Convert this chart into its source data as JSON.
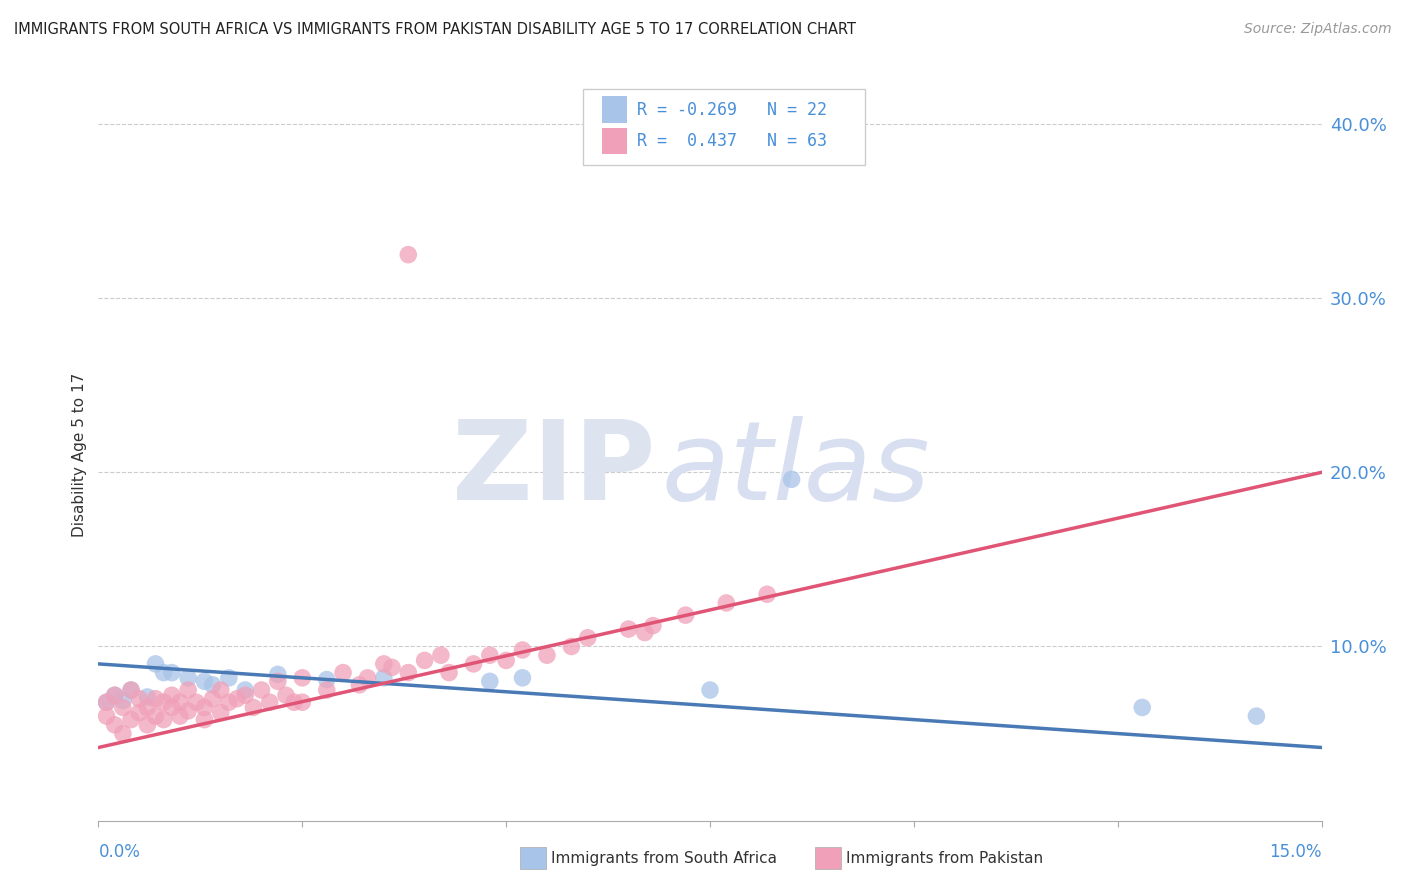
{
  "title": "IMMIGRANTS FROM SOUTH AFRICA VS IMMIGRANTS FROM PAKISTAN DISABILITY AGE 5 TO 17 CORRELATION CHART",
  "source": "Source: ZipAtlas.com",
  "ylabel": "Disability Age 5 to 17",
  "xlim": [
    0.0,
    0.15
  ],
  "ylim": [
    0.0,
    0.42
  ],
  "yticks": [
    0.1,
    0.2,
    0.3,
    0.4
  ],
  "legend_labels": [
    "Immigrants from South Africa",
    "Immigrants from Pakistan"
  ],
  "R_sa": -0.269,
  "N_sa": 22,
  "R_pk": 0.437,
  "N_pk": 63,
  "color_sa": "#a8c4e8",
  "color_pk": "#f0a0b8",
  "line_sa": "#4a7ab5",
  "line_pk": "#e05575",
  "color_text_blue": "#4a90d9",
  "sa_x": [
    0.001,
    0.002,
    0.003,
    0.004,
    0.006,
    0.007,
    0.008,
    0.009,
    0.011,
    0.013,
    0.014,
    0.016,
    0.018,
    0.022,
    0.028,
    0.035,
    0.048,
    0.052,
    0.075,
    0.085,
    0.128,
    0.142
  ],
  "sa_y": [
    0.068,
    0.072,
    0.069,
    0.075,
    0.071,
    0.09,
    0.085,
    0.085,
    0.082,
    0.08,
    0.078,
    0.082,
    0.075,
    0.084,
    0.081,
    0.082,
    0.08,
    0.082,
    0.075,
    0.196,
    0.065,
    0.06
  ],
  "pk_x": [
    0.001,
    0.001,
    0.002,
    0.002,
    0.003,
    0.003,
    0.004,
    0.004,
    0.005,
    0.005,
    0.006,
    0.006,
    0.007,
    0.007,
    0.008,
    0.008,
    0.009,
    0.009,
    0.01,
    0.01,
    0.011,
    0.011,
    0.012,
    0.013,
    0.013,
    0.014,
    0.015,
    0.015,
    0.016,
    0.017,
    0.018,
    0.019,
    0.02,
    0.021,
    0.022,
    0.023,
    0.024,
    0.025,
    0.025,
    0.028,
    0.03,
    0.032,
    0.033,
    0.035,
    0.036,
    0.038,
    0.04,
    0.042,
    0.043,
    0.046,
    0.048,
    0.05,
    0.052,
    0.055,
    0.058,
    0.06,
    0.065,
    0.067,
    0.068,
    0.072,
    0.077,
    0.082,
    0.038
  ],
  "pk_y": [
    0.068,
    0.06,
    0.055,
    0.072,
    0.065,
    0.05,
    0.058,
    0.075,
    0.062,
    0.07,
    0.065,
    0.055,
    0.07,
    0.06,
    0.068,
    0.058,
    0.065,
    0.072,
    0.06,
    0.068,
    0.063,
    0.075,
    0.068,
    0.058,
    0.065,
    0.07,
    0.062,
    0.075,
    0.068,
    0.07,
    0.072,
    0.065,
    0.075,
    0.068,
    0.08,
    0.072,
    0.068,
    0.082,
    0.068,
    0.075,
    0.085,
    0.078,
    0.082,
    0.09,
    0.088,
    0.085,
    0.092,
    0.095,
    0.085,
    0.09,
    0.095,
    0.092,
    0.098,
    0.095,
    0.1,
    0.105,
    0.11,
    0.108,
    0.112,
    0.118,
    0.125,
    0.13,
    0.325
  ],
  "sa_line_x0": 0.0,
  "sa_line_x1": 0.15,
  "sa_line_y0": 0.09,
  "sa_line_y1": 0.042,
  "pk_line_x0": 0.0,
  "pk_line_x1": 0.15,
  "pk_line_y0": 0.042,
  "pk_line_y1": 0.2
}
